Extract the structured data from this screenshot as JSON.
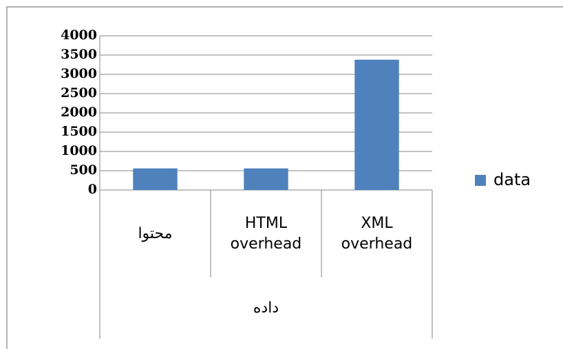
{
  "chart_data": {
    "type": "bar",
    "categories": [
      "محتوا",
      "HTML overhead",
      "XML overhead"
    ],
    "group_label": "داده",
    "series": [
      {
        "name": "data",
        "color": "#4f81bd",
        "values": [
          560,
          560,
          3380
        ]
      }
    ],
    "ylim": [
      0,
      4000
    ],
    "yticks": [
      0,
      500,
      1000,
      1500,
      2000,
      2500,
      3000,
      3500,
      4000
    ],
    "grid": true,
    "legend": "right"
  }
}
